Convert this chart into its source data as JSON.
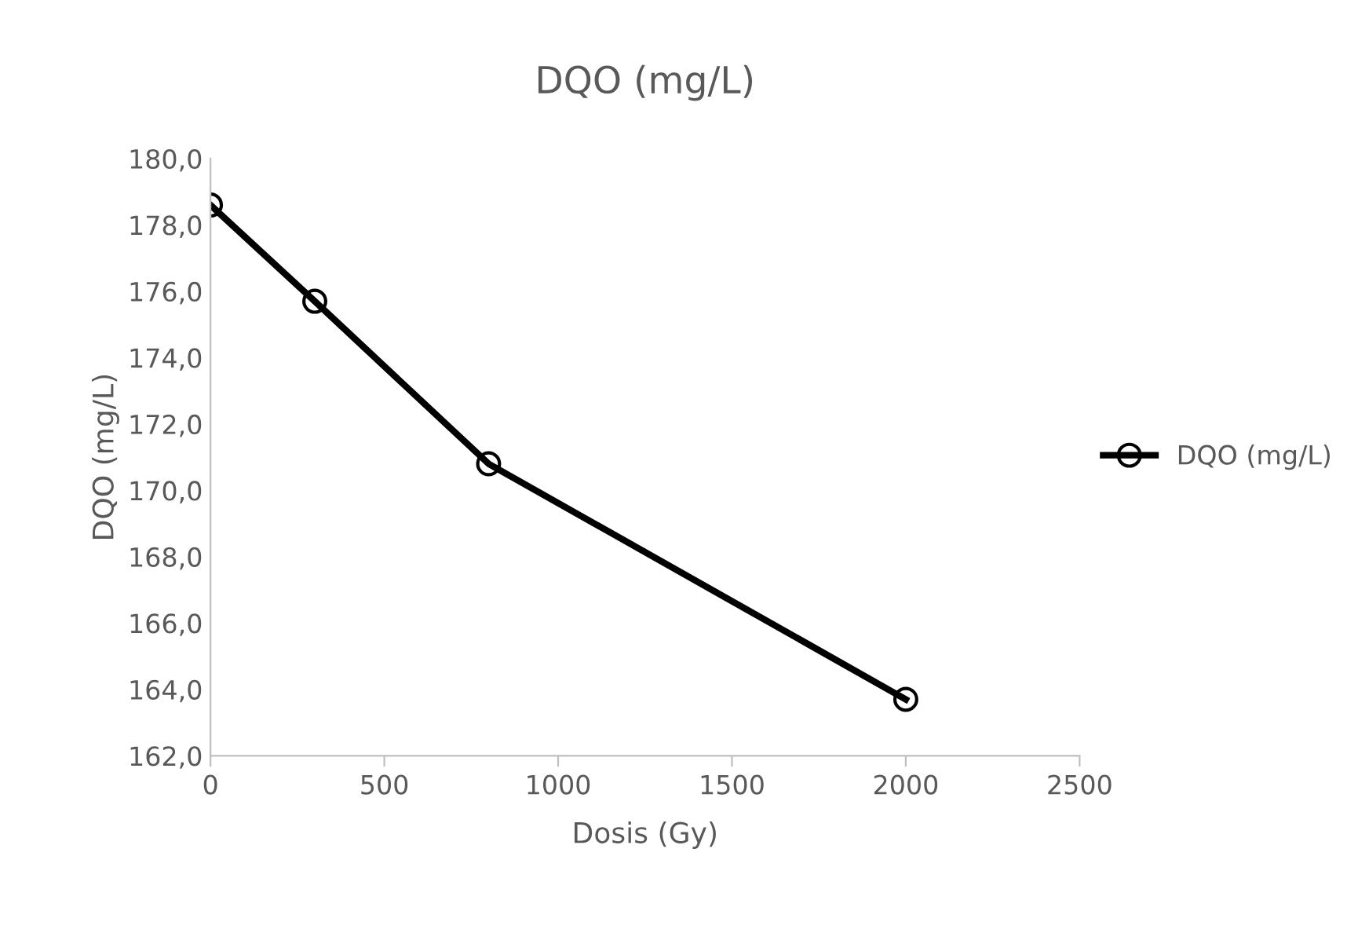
{
  "chart_data": {
    "type": "line",
    "title": "DQO (mg/L)",
    "xlabel": "Dosis (Gy)",
    "ylabel": "DQO (mg/L)",
    "x": [
      0,
      300,
      800,
      2000
    ],
    "series": [
      {
        "name": "DQO (mg/L)",
        "color": "#000000",
        "values": [
          178.6,
          175.7,
          170.8,
          163.7
        ]
      }
    ],
    "xlim": [
      0,
      2500
    ],
    "xticks": [
      0,
      500,
      1000,
      1500,
      2000,
      2500
    ],
    "ylim": [
      162,
      180
    ],
    "yticks": [
      {
        "value": 162,
        "label": "162,0"
      },
      {
        "value": 164,
        "label": "164,0"
      },
      {
        "value": 166,
        "label": "166,0"
      },
      {
        "value": 168,
        "label": "168,0"
      },
      {
        "value": 170,
        "label": "170,0"
      },
      {
        "value": 172,
        "label": "172,0"
      },
      {
        "value": 174,
        "label": "174,0"
      },
      {
        "value": 176,
        "label": "176,0"
      },
      {
        "value": 178,
        "label": "178,0"
      },
      {
        "value": 180,
        "label": "180,0"
      }
    ],
    "grid": false,
    "legend": "right",
    "marker": "circle",
    "line_style": "solid"
  }
}
